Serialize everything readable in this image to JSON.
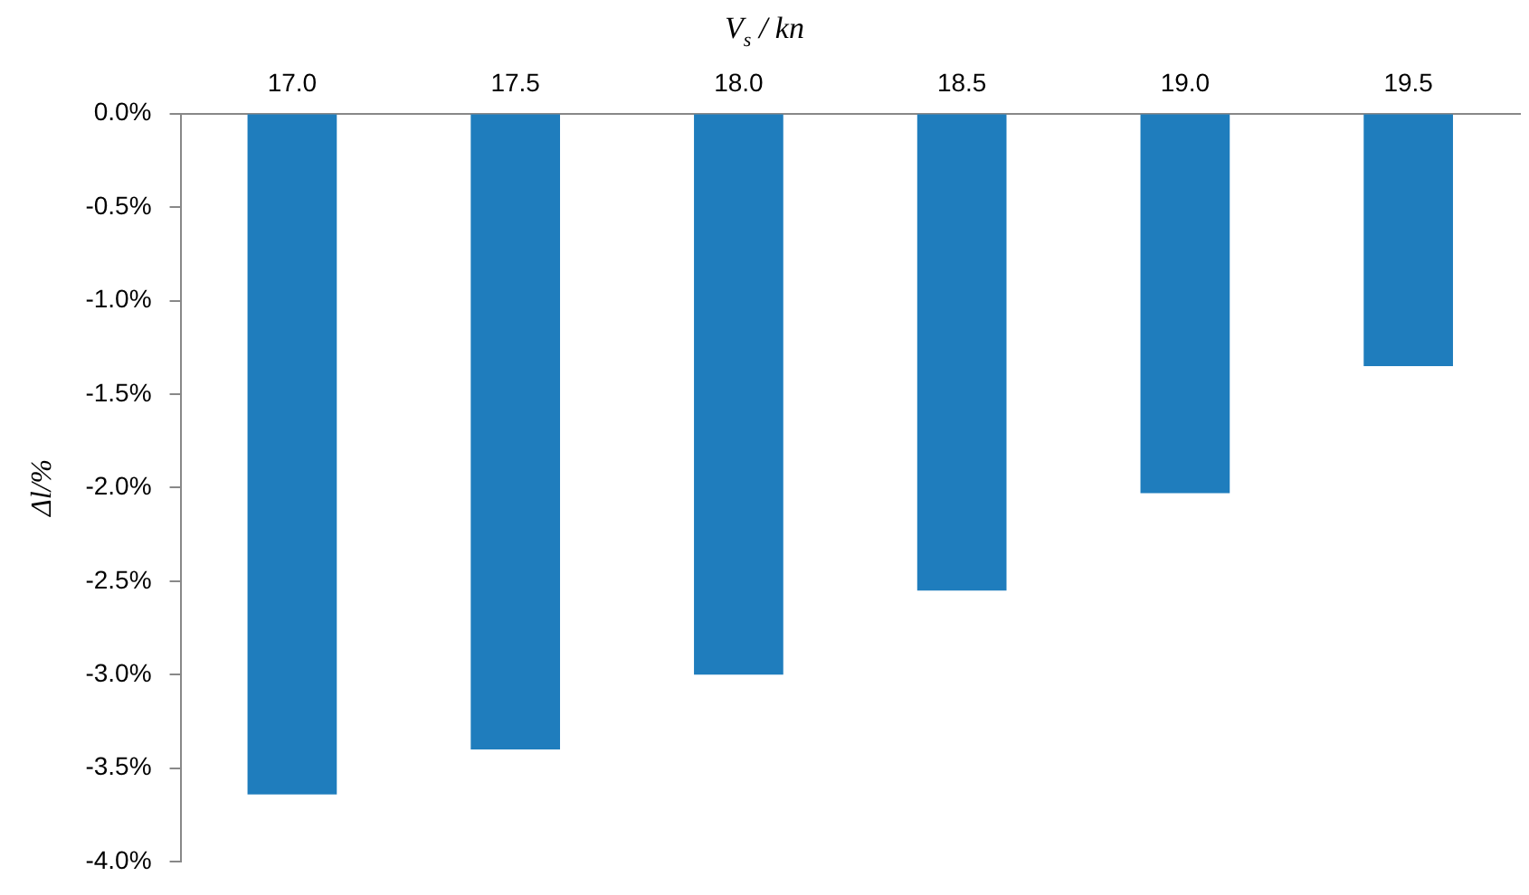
{
  "chart_data": {
    "type": "bar",
    "xlabel": "V$_{s}$ / kn",
    "ylabel": "Δl/%",
    "categories": [
      "17.0",
      "17.5",
      "18.0",
      "18.5",
      "19.0",
      "19.5"
    ],
    "values": [
      -3.64,
      -3.4,
      -3.0,
      -2.55,
      -2.03,
      -1.35
    ],
    "color": "#1f7dbd",
    "ylim": [
      -4,
      0
    ],
    "yticks": [
      {
        "value": 0,
        "label": "0.0%"
      },
      {
        "value": -0.5,
        "label": "-0.5%"
      },
      {
        "value": -1,
        "label": "-1.0%"
      },
      {
        "value": -1.5,
        "label": "-1.5%"
      },
      {
        "value": -2,
        "label": "-2.0%"
      },
      {
        "value": -2.5,
        "label": "-2.5%"
      },
      {
        "value": -3,
        "label": "-3.0%"
      },
      {
        "value": -3.5,
        "label": "-3.5%"
      },
      {
        "value": -4,
        "label": "-4.0%"
      }
    ],
    "grid": false,
    "legend": false
  }
}
